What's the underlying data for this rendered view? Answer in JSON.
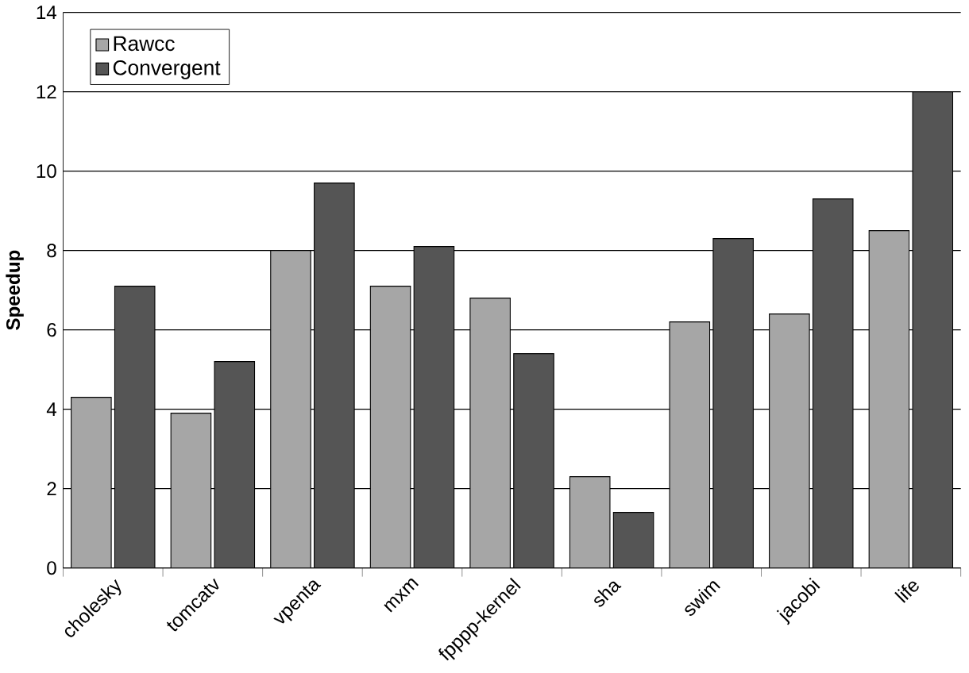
{
  "chart_data": {
    "type": "bar",
    "ylabel": "Speedup",
    "categories": [
      "cholesky",
      "tomcatv",
      "vpenta",
      "mxm",
      "fpppp-kernel",
      "sha",
      "swim",
      "jacobi",
      "life"
    ],
    "series": [
      {
        "name": "Rawcc",
        "color": "#a6a6a6",
        "values": [
          4.3,
          3.9,
          8.0,
          7.1,
          6.8,
          2.3,
          6.2,
          6.4,
          8.5
        ]
      },
      {
        "name": "Convergent",
        "color": "#555555",
        "values": [
          7.1,
          5.2,
          9.7,
          8.1,
          5.4,
          1.4,
          8.3,
          9.3,
          12.0
        ]
      }
    ],
    "ylim": [
      0,
      14
    ],
    "yticks": [
      0,
      2,
      4,
      6,
      8,
      10,
      12,
      14
    ],
    "grid": "y",
    "legend": "top left"
  }
}
